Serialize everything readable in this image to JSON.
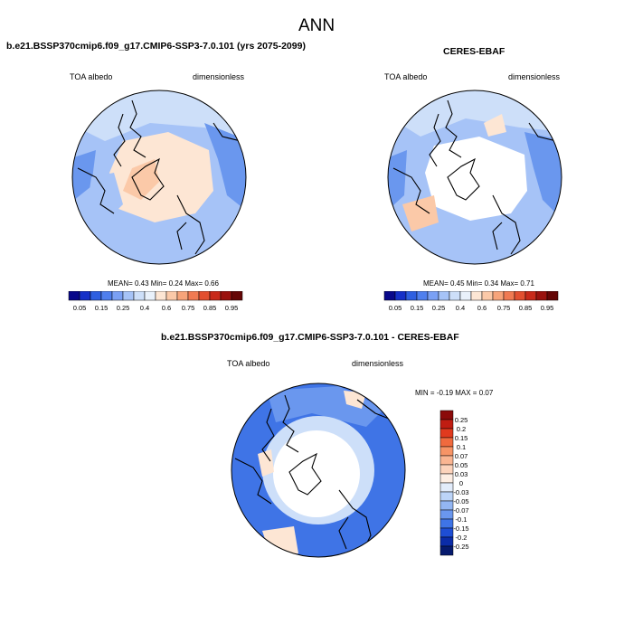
{
  "page_title": "ANN",
  "panels": [
    {
      "title": "b.e21.BSSP370cmip6.f09_g17.CMIP6-SSP3-7.0.101 (yrs 2075-2099)",
      "variable": "TOA albedo",
      "units": "dimensionless",
      "stats": "MEAN=  0.43  Min=  0.24  Max=  0.66"
    },
    {
      "title": "CERES-EBAF",
      "variable": "TOA albedo",
      "units": "dimensionless",
      "stats": "MEAN=  0.45  Min=  0.34  Max=  0.71"
    },
    {
      "title": "b.e21.BSSP370cmip6.f09_g17.CMIP6-SSP3-7.0.101 - CERES-EBAF",
      "variable": "TOA albedo",
      "units": "dimensionless",
      "stats": "MIN =  -0.19 MAX =  0.07"
    }
  ],
  "colorbar_albedo": {
    "labels": [
      "0.05",
      "0.15",
      "0.25",
      "0.4",
      "0.6",
      "0.75",
      "0.85",
      "0.95"
    ],
    "colors": [
      "#08088a",
      "#1530c8",
      "#2e5fe0",
      "#4f7fee",
      "#7aa0f4",
      "#a6c3f7",
      "#cddff9",
      "#e9f1fb",
      "#fde6d4",
      "#fbc9a8",
      "#f7a47a",
      "#f07a52",
      "#e25030",
      "#c82a1a",
      "#9a120e",
      "#650606"
    ]
  },
  "colorbar_diff": {
    "labels": [
      "0.25",
      "0.2",
      "0.15",
      "0.1",
      "0.07",
      "0.05",
      "0.03",
      "0",
      "-0.03",
      "-0.05",
      "-0.07",
      "-0.1",
      "-0.15",
      "-0.2",
      "-0.25"
    ],
    "colors": [
      "#8b0a0a",
      "#c01d12",
      "#e03a1e",
      "#f06a3e",
      "#f79466",
      "#fab592",
      "#fcd3bc",
      "#fdeee4",
      "#e2ecfb",
      "#bcd4f8",
      "#93b6f3",
      "#6a97ee",
      "#3f74e6",
      "#1e4ed4",
      "#0b2ca8",
      "#061a6e"
    ]
  },
  "map_colors": {
    "ocean_blue": "#6a97ee",
    "light_blue": "#a6c3f7",
    "pale_blue": "#cddff9",
    "peach": "#fde6d4",
    "salmon": "#fbc9a8",
    "white": "#ffffff",
    "deep_blue": "#3f74e6"
  }
}
